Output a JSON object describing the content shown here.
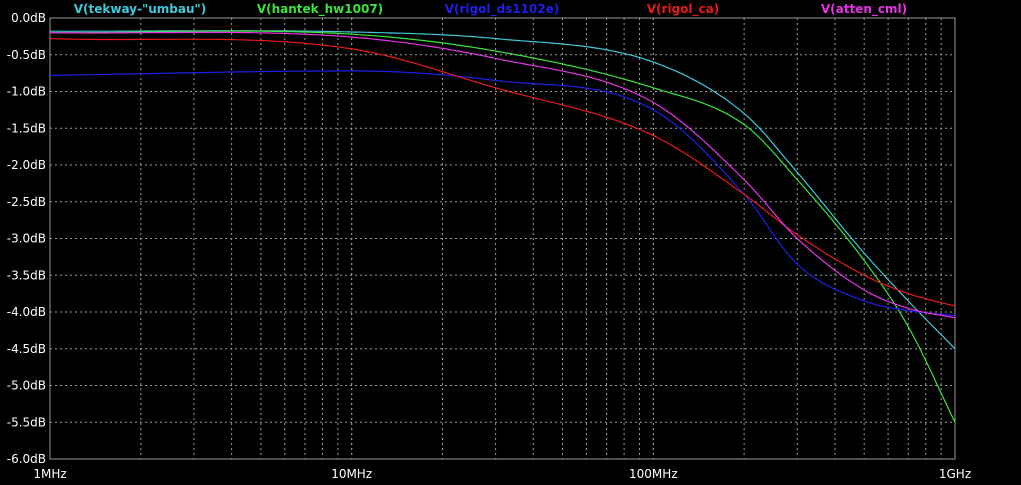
{
  "chart_data": {
    "type": "line",
    "x_scale": "log",
    "xlim": [
      1000000,
      1000000000
    ],
    "ylim": [
      -6,
      0
    ],
    "grid": true,
    "background": "#000000",
    "grid_color": "#9a9a9a",
    "x_ticks": [
      {
        "value": 1000000,
        "label": "1MHz"
      },
      {
        "value": 10000000,
        "label": "10MHz"
      },
      {
        "value": 100000000,
        "label": "100MHz"
      },
      {
        "value": 1000000000,
        "label": "1GHz"
      }
    ],
    "y_ticks": [
      {
        "value": 0,
        "label": "0.0dB"
      },
      {
        "value": -0.5,
        "label": "-0.5dB"
      },
      {
        "value": -1,
        "label": "-1.0dB"
      },
      {
        "value": -1.5,
        "label": "-1.5dB"
      },
      {
        "value": -2,
        "label": "-2.0dB"
      },
      {
        "value": -2.5,
        "label": "-2.5dB"
      },
      {
        "value": -3,
        "label": "-3.0dB"
      },
      {
        "value": -3.5,
        "label": "-3.5dB"
      },
      {
        "value": -4,
        "label": "-4.0dB"
      },
      {
        "value": -4.5,
        "label": "-4.5dB"
      },
      {
        "value": -5,
        "label": "-5.0dB"
      },
      {
        "value": -5.5,
        "label": "-5.5dB"
      },
      {
        "value": -6,
        "label": "-6.0dB"
      }
    ],
    "x": [
      1000000,
      10000000,
      30000000,
      100000000,
      200000000,
      300000000,
      500000000,
      700000000,
      1000000000
    ],
    "series": [
      {
        "name": "V(tekway-\"umbau\")",
        "color": "#3fc9d8",
        "values": [
          -0.18,
          -0.19,
          -0.28,
          -0.6,
          -1.3,
          -2.1,
          -3.2,
          -3.85,
          -4.5
        ]
      },
      {
        "name": "V(hantek_hw1007)",
        "color": "#3ae43a",
        "values": [
          -0.2,
          -0.22,
          -0.45,
          -0.95,
          -1.45,
          -2.2,
          -3.3,
          -4.2,
          -5.5
        ]
      },
      {
        "name": "V(rigol_ds1102e)",
        "color": "#1f1fe6",
        "values": [
          -0.78,
          -0.72,
          -0.85,
          -1.25,
          -2.4,
          -3.35,
          -3.85,
          -3.98,
          -4.05
        ]
      },
      {
        "name": "V(rigol_ca)",
        "color": "#e61a1a",
        "values": [
          -0.28,
          -0.42,
          -0.95,
          -1.6,
          -2.4,
          -2.95,
          -3.5,
          -3.75,
          -3.92
        ]
      },
      {
        "name": "V(atten_cml)",
        "color": "#e633e6",
        "values": [
          -0.2,
          -0.26,
          -0.55,
          -1.15,
          -2.2,
          -3.0,
          -3.7,
          -3.95,
          -4.08
        ]
      }
    ]
  }
}
